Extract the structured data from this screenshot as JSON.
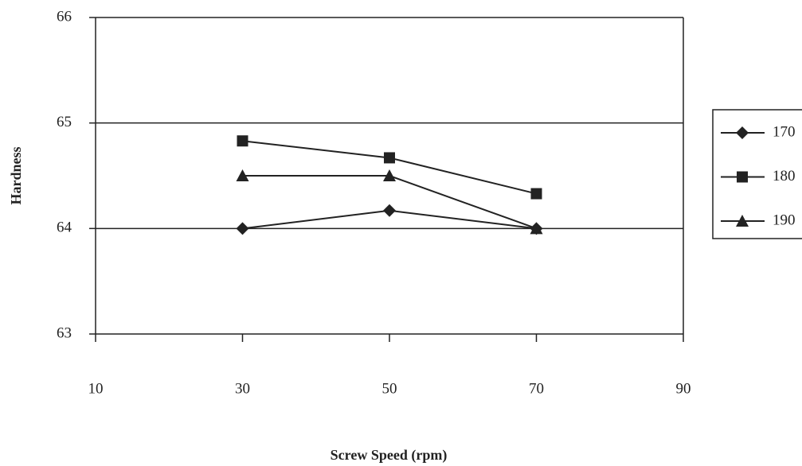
{
  "chart_data": {
    "type": "line",
    "x_label": "Screw Speed (rpm)",
    "y_label": "Hardness",
    "x": [
      30,
      50,
      70
    ],
    "series": [
      {
        "name": "170",
        "color": "#222222",
        "marker": "diamond",
        "values": [
          64,
          64.17,
          64
        ]
      },
      {
        "name": "180",
        "color": "#222222",
        "marker": "square",
        "values": [
          64.83,
          64.67,
          64.33
        ]
      },
      {
        "name": "190",
        "color": "#222222",
        "marker": "triangle",
        "values": [
          64.5,
          64.5,
          64
        ]
      }
    ],
    "xlim": [
      10,
      90
    ],
    "xticks": [
      10,
      30,
      50,
      70,
      90
    ],
    "ylim": [
      63,
      66
    ],
    "yticks": [
      63,
      64,
      65,
      66
    ],
    "grid": true,
    "legend": "right"
  }
}
